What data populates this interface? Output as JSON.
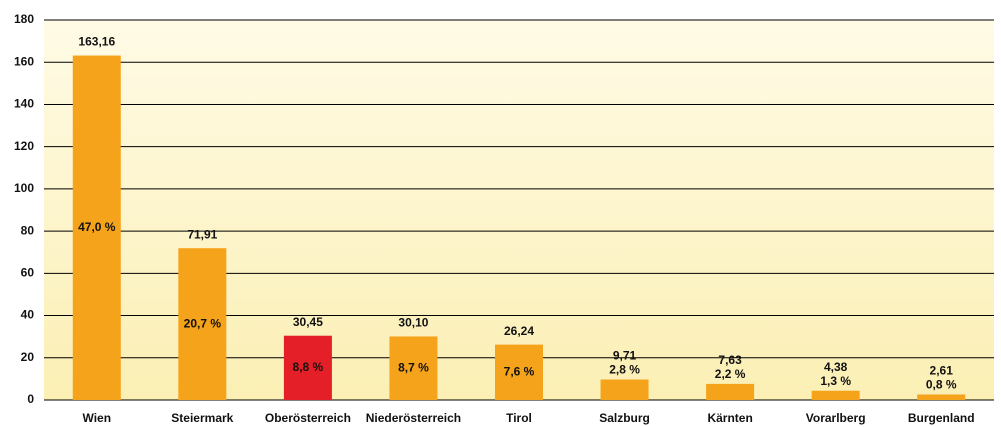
{
  "chart_data": {
    "type": "bar",
    "categories": [
      "Wien",
      "Steiermark",
      "Oberösterreich",
      "Niederösterreich",
      "Tirol",
      "Salzburg",
      "Kärnten",
      "Vorarlberg",
      "Burgenland"
    ],
    "values": [
      163.16,
      71.91,
      30.45,
      30.1,
      26.24,
      9.71,
      7.63,
      4.38,
      2.61
    ],
    "value_labels": [
      "163,16",
      "71,91",
      "30,45",
      "30,10",
      "26,24",
      "9,71",
      "7,63",
      "4,38",
      "2,61"
    ],
    "share_labels": [
      "47,0 %",
      "20,7 %",
      "8,8 %",
      "8,7 %",
      "7,6 %",
      "2,8 %",
      "2,2 %",
      "1,3 %",
      "0,8 %"
    ],
    "colors": [
      "#f5a31a",
      "#f5a31a",
      "#e51f28",
      "#f5a31a",
      "#f5a31a",
      "#f5a31a",
      "#f5a31a",
      "#f5a31a",
      "#f5a31a"
    ],
    "ylim": [
      0,
      180
    ],
    "yticks": [
      0,
      20,
      40,
      60,
      80,
      100,
      120,
      140,
      160,
      180
    ],
    "grid": true
  }
}
